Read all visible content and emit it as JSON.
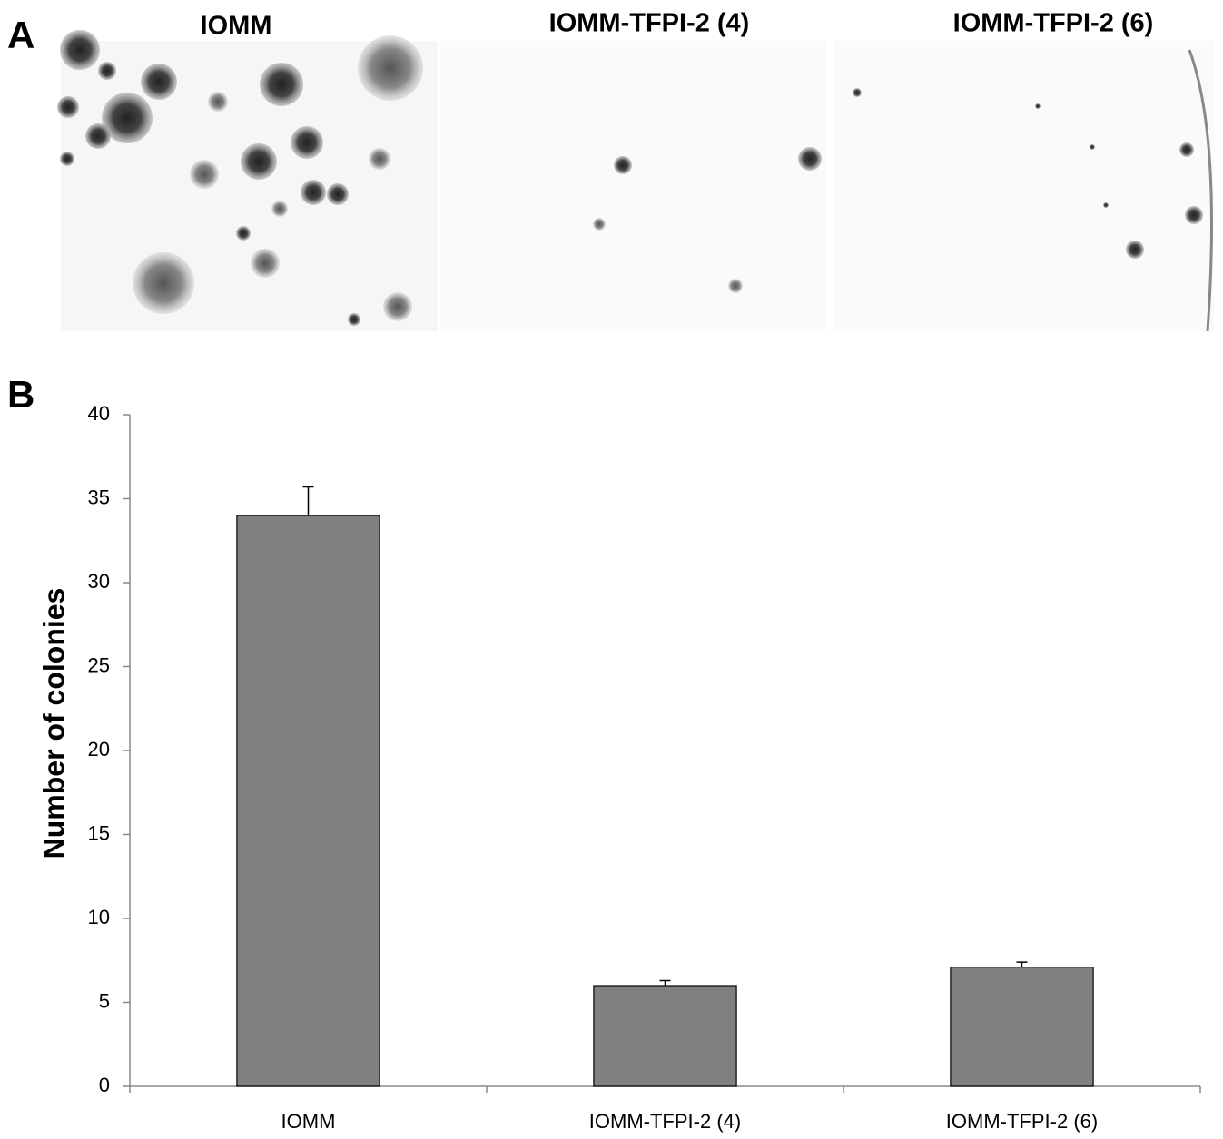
{
  "panel_a": {
    "label": "A",
    "images": [
      {
        "title": "IOMM"
      },
      {
        "title": "IOMM-TFPI-2 (4)"
      },
      {
        "title": "IOMM-TFPI-2 (6)"
      }
    ]
  },
  "panel_b": {
    "label": "B"
  },
  "chart_data": {
    "type": "bar",
    "y_label": "Number of colonies",
    "categories": [
      "IOMM",
      "IOMM-TFPI-2 (4)",
      "IOMM-TFPI-2 (6)"
    ],
    "values": [
      34,
      6,
      7.1
    ],
    "errors": [
      1.7,
      0.3,
      0.3
    ],
    "color": "#808080",
    "ylim": [
      0,
      40
    ],
    "yticks": [
      0,
      5,
      10,
      15,
      20,
      25,
      30,
      35,
      40
    ],
    "grid": false
  }
}
